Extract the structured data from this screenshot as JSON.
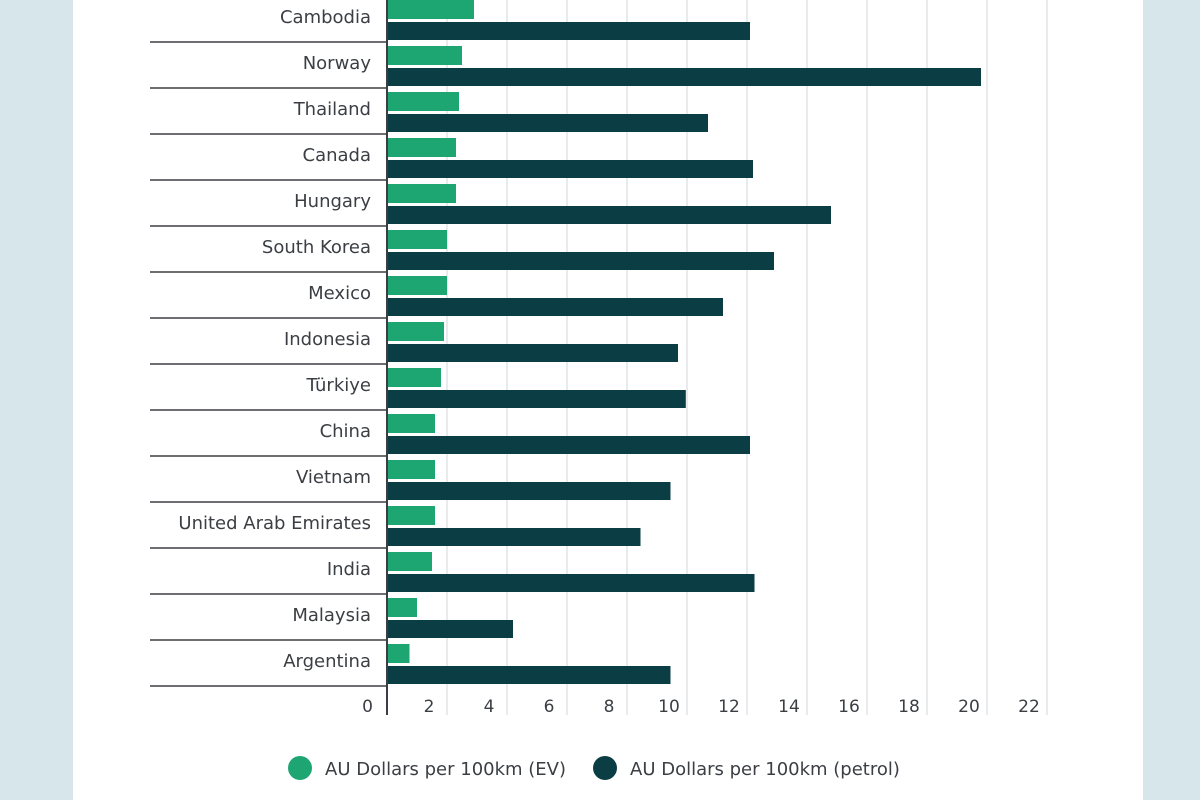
{
  "chart_data": {
    "type": "bar",
    "orientation": "horizontal",
    "categories": [
      "Cambodia",
      "Norway",
      "Thailand",
      "Canada",
      "Hungary",
      "South Korea",
      "Mexico",
      "Indonesia",
      "Türkiye",
      "China",
      "Vietnam",
      "United Arab Emirates",
      "India",
      "Malaysia",
      "Argentina"
    ],
    "series": [
      {
        "name": "AU Dollars per 100km (EV)",
        "color": "#1ea672",
        "values": [
          2.9,
          2.5,
          2.4,
          2.3,
          2.3,
          2.0,
          2.0,
          1.9,
          1.8,
          1.6,
          1.6,
          1.6,
          1.5,
          1.0,
          0.75
        ]
      },
      {
        "name": "AU Dollars per 100km (petrol)",
        "color": "#0b3d45",
        "values": [
          12.1,
          19.8,
          10.7,
          12.2,
          14.8,
          12.9,
          11.2,
          9.7,
          9.96,
          12.1,
          9.45,
          8.45,
          12.25,
          4.2,
          9.45
        ]
      }
    ],
    "x_ticks": [
      0,
      2,
      4,
      6,
      8,
      10,
      12,
      14,
      16,
      18,
      20,
      22
    ],
    "xlim": [
      0,
      22
    ],
    "grid": true,
    "legend_position": "bottom"
  }
}
